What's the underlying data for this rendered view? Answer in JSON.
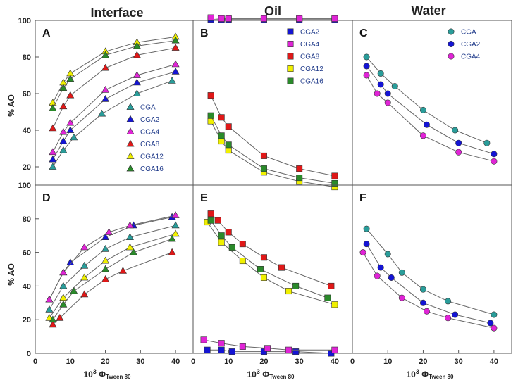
{
  "figure": {
    "column_titles": [
      "Interface",
      "Oil",
      "Water"
    ],
    "ylabel": "% AO",
    "xlabel_main": "10",
    "xlabel_sup": "3",
    "xlabel_phi": " Φ",
    "xlabel_sub": "Tween 80",
    "x_ticks": [
      "0",
      "10",
      "20",
      "30",
      "40"
    ],
    "y_ticks_bottom": [
      "0",
      "20",
      "40",
      "60",
      "80",
      "100"
    ],
    "y_ticks_top": [
      "20",
      "40",
      "60",
      "80",
      "100"
    ]
  },
  "colors": {
    "CGA": "#2a9d9a",
    "CGA2": "#1414d4",
    "CGA4": "#e024d6",
    "CGA8": "#e01818",
    "CGA12": "#f0f000",
    "CGA16": "#2a8a2a"
  },
  "chart_data": [
    {
      "panel": "A",
      "type": "scatter",
      "title": "",
      "xlabel": "",
      "ylabel": "% AO",
      "xlim": [
        0,
        45
      ],
      "ylim": [
        10,
        100
      ],
      "marker": "triangle",
      "legend_location": "lower-right",
      "series": [
        {
          "name": "CGA",
          "x": [
            5,
            8,
            11,
            19,
            29,
            39
          ],
          "y": [
            20,
            29,
            36,
            49,
            60,
            67
          ]
        },
        {
          "name": "CGA2",
          "x": [
            5,
            8,
            10,
            20,
            29,
            40
          ],
          "y": [
            24,
            34,
            40,
            57,
            66,
            72
          ]
        },
        {
          "name": "CGA4",
          "x": [
            5,
            8,
            10,
            20,
            29,
            40
          ],
          "y": [
            28,
            39,
            44,
            62,
            70,
            76
          ]
        },
        {
          "name": "CGA8",
          "x": [
            5,
            8,
            10,
            20,
            29,
            40
          ],
          "y": [
            41,
            53,
            59,
            74,
            81,
            85
          ]
        },
        {
          "name": "CGA12",
          "x": [
            5,
            8,
            10,
            20,
            29,
            40
          ],
          "y": [
            55,
            66,
            71,
            83,
            88,
            91
          ]
        },
        {
          "name": "CGA16",
          "x": [
            5,
            8,
            10,
            20,
            29,
            40
          ],
          "y": [
            52,
            63,
            68,
            81,
            86,
            89
          ]
        }
      ]
    },
    {
      "panel": "B",
      "type": "scatter",
      "title": "",
      "xlabel": "",
      "ylabel": "",
      "xlim": [
        0,
        45
      ],
      "ylim": [
        10,
        100
      ],
      "marker": "square",
      "legend_location": "top-center",
      "series": [
        {
          "name": "CGA2",
          "x": [
            5,
            8,
            10,
            20,
            30,
            40
          ],
          "y": [
            100.5,
            100.5,
            100.5,
            100.5,
            100.5,
            100.5
          ]
        },
        {
          "name": "CGA4",
          "x": [
            5,
            8,
            10,
            20,
            30,
            40
          ],
          "y": [
            101.5,
            101,
            101,
            101,
            101,
            101
          ]
        },
        {
          "name": "CGA8",
          "x": [
            5,
            8,
            10,
            20,
            30,
            40
          ],
          "y": [
            59,
            47,
            42,
            26,
            19,
            15
          ]
        },
        {
          "name": "CGA12",
          "x": [
            5,
            8,
            10,
            20,
            30,
            40
          ],
          "y": [
            45,
            34,
            29,
            17,
            12,
            9
          ]
        },
        {
          "name": "CGA16",
          "x": [
            5,
            8,
            10,
            20,
            30,
            40
          ],
          "y": [
            48,
            37,
            32,
            19,
            14,
            11
          ]
        }
      ]
    },
    {
      "panel": "C",
      "type": "scatter",
      "title": "",
      "xlabel": "",
      "ylabel": "",
      "xlim": [
        0,
        45
      ],
      "ylim": [
        10,
        100
      ],
      "marker": "circle",
      "legend_location": "top-center",
      "series": [
        {
          "name": "CGA",
          "x": [
            4,
            8,
            12,
            20,
            29,
            38
          ],
          "y": [
            80,
            71,
            64,
            51,
            40,
            33
          ]
        },
        {
          "name": "CGA2",
          "x": [
            4,
            8,
            10,
            21,
            30,
            40
          ],
          "y": [
            75,
            65,
            60,
            43,
            33,
            27
          ]
        },
        {
          "name": "CGA4",
          "x": [
            4,
            7,
            10,
            20,
            30,
            40
          ],
          "y": [
            70,
            60,
            55,
            37,
            28,
            23
          ]
        }
      ]
    },
    {
      "panel": "D",
      "type": "scatter",
      "title": "",
      "xlabel": "10^3 Φ Tween 80",
      "ylabel": "% AO",
      "xlim": [
        0,
        45
      ],
      "ylim": [
        0,
        100
      ],
      "marker": "triangle",
      "series": [
        {
          "name": "CGA",
          "x": [
            4,
            8,
            14,
            20,
            27,
            40
          ],
          "y": [
            26,
            40,
            52,
            62,
            69,
            76
          ]
        },
        {
          "name": "CGA2",
          "x": [
            4,
            8,
            10,
            20,
            28,
            39
          ],
          "y": [
            32,
            48,
            54,
            69,
            76,
            81
          ]
        },
        {
          "name": "CGA4",
          "x": [
            4,
            8,
            14,
            21,
            27,
            40
          ],
          "y": [
            32,
            48,
            63,
            72,
            76,
            82
          ]
        },
        {
          "name": "CGA8",
          "x": [
            5,
            7,
            14,
            20,
            25,
            39
          ],
          "y": [
            17,
            21,
            35,
            44,
            49,
            60
          ]
        },
        {
          "name": "CGA12",
          "x": [
            4,
            8,
            14,
            20,
            27,
            40
          ],
          "y": [
            21,
            33,
            45,
            55,
            63,
            71
          ]
        },
        {
          "name": "CGA16",
          "x": [
            5,
            8,
            11,
            20,
            28,
            39
          ],
          "y": [
            20,
            29,
            37,
            50,
            60,
            68
          ]
        }
      ]
    },
    {
      "panel": "E",
      "type": "scatter",
      "title": "",
      "xlabel": "10^3 Φ Tween 80",
      "ylabel": "",
      "xlim": [
        0,
        45
      ],
      "ylim": [
        0,
        100
      ],
      "marker": "square",
      "series": [
        {
          "name": "CGA2",
          "x": [
            4,
            8,
            11,
            20,
            29,
            39
          ],
          "y": [
            2,
            2,
            1,
            1,
            1,
            0
          ]
        },
        {
          "name": "CGA4",
          "x": [
            3,
            8,
            14,
            21,
            27,
            40
          ],
          "y": [
            8,
            6,
            4,
            3,
            2,
            2
          ]
        },
        {
          "name": "CGA8",
          "x": [
            5,
            7,
            10,
            14,
            20,
            25,
            39
          ],
          "y": [
            83,
            79,
            72,
            65,
            57,
            51,
            40
          ]
        },
        {
          "name": "CGA12",
          "x": [
            4,
            8,
            14,
            20,
            27,
            40
          ],
          "y": [
            78,
            66,
            55,
            45,
            37,
            29
          ]
        },
        {
          "name": "CGA16",
          "x": [
            5,
            8,
            11,
            19,
            29,
            38
          ],
          "y": [
            79,
            70,
            63,
            50,
            40,
            33
          ]
        }
      ]
    },
    {
      "panel": "F",
      "type": "scatter",
      "title": "",
      "xlabel": "10^3 Φ Tween 80",
      "ylabel": "",
      "xlim": [
        0,
        45
      ],
      "ylim": [
        0,
        100
      ],
      "marker": "circle",
      "series": [
        {
          "name": "CGA",
          "x": [
            4,
            10,
            14,
            20,
            27,
            40
          ],
          "y": [
            74,
            59,
            48,
            38,
            31,
            23
          ]
        },
        {
          "name": "CGA2",
          "x": [
            4,
            8,
            11,
            20,
            29,
            39
          ],
          "y": [
            65,
            51,
            45,
            30,
            23,
            18
          ]
        },
        {
          "name": "CGA4",
          "x": [
            3,
            7,
            14,
            21,
            27,
            40
          ],
          "y": [
            60,
            46,
            33,
            25,
            21,
            15
          ]
        }
      ]
    }
  ]
}
